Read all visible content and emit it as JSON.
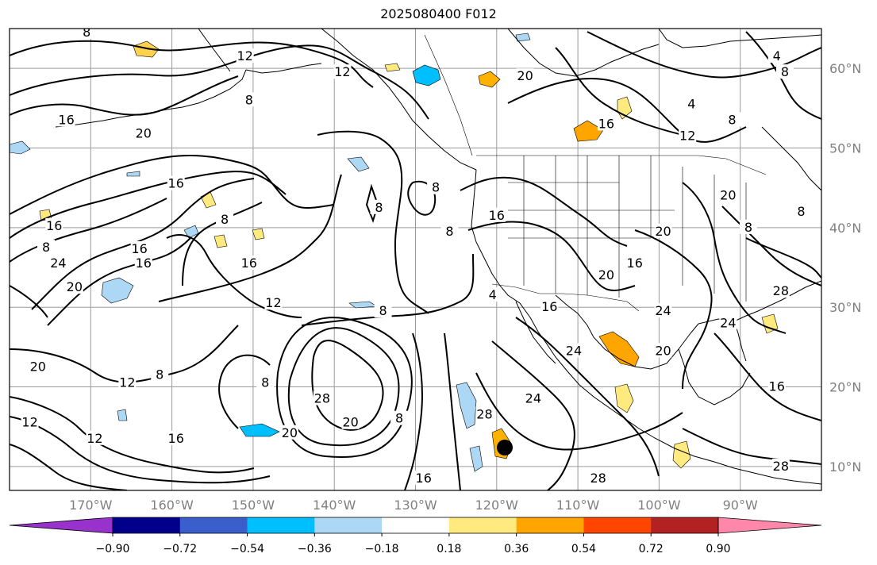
{
  "title": "2025080400 F012",
  "chart_data": {
    "type": "map",
    "projection": "equirectangular",
    "lon_range": [
      -180,
      -80
    ],
    "lat_range": [
      7,
      65
    ],
    "lon_ticks": [
      {
        "lon": -170,
        "label": "170°W"
      },
      {
        "lon": -160,
        "label": "160°W"
      },
      {
        "lon": -150,
        "label": "150°W"
      },
      {
        "lon": -140,
        "label": "140°W"
      },
      {
        "lon": -130,
        "label": "130°W"
      },
      {
        "lon": -120,
        "label": "120°W"
      },
      {
        "lon": -110,
        "label": "110°W"
      },
      {
        "lon": -100,
        "label": "100°W"
      },
      {
        "lon": -90,
        "label": "90°W"
      }
    ],
    "lat_ticks": [
      {
        "lat": 60,
        "label": "60°N"
      },
      {
        "lat": 50,
        "label": "50°N"
      },
      {
        "lat": 40,
        "label": "40°N"
      },
      {
        "lat": 30,
        "label": "30°N"
      },
      {
        "lat": 20,
        "label": "20°N"
      },
      {
        "lat": 10,
        "label": "10°N"
      }
    ],
    "colorbar": {
      "colors": [
        "#9932cc",
        "#00008b",
        "#3a5fcd",
        "#00bfff",
        "#add8f5",
        "#ffffff",
        "#ffea80",
        "#ffa500",
        "#ff4500",
        "#b22222",
        "#ff88aa"
      ],
      "tick_labels": [
        "−0.90",
        "−0.72",
        "−0.54",
        "−0.36",
        "−0.18",
        "0.18",
        "0.36",
        "0.54",
        "0.72",
        "0.90"
      ]
    },
    "contour_labels": [
      {
        "text": "8",
        "lon": -170.5,
        "lat": 64.5
      },
      {
        "text": "12",
        "lon": -151,
        "lat": 61.5
      },
      {
        "text": "12",
        "lon": -139,
        "lat": 59.5
      },
      {
        "text": "8",
        "lon": -150.5,
        "lat": 56
      },
      {
        "text": "16",
        "lon": -173,
        "lat": 53.5
      },
      {
        "text": "20",
        "lon": -163.5,
        "lat": 51.8
      },
      {
        "text": "16",
        "lon": -159.5,
        "lat": 45.5
      },
      {
        "text": "16",
        "lon": -174.5,
        "lat": 40.2
      },
      {
        "text": "8",
        "lon": -153.5,
        "lat": 41
      },
      {
        "text": "8",
        "lon": -175.5,
        "lat": 37.5
      },
      {
        "text": "16",
        "lon": -164,
        "lat": 37.3
      },
      {
        "text": "24",
        "lon": -174,
        "lat": 35.5
      },
      {
        "text": "16",
        "lon": -163.5,
        "lat": 35.5
      },
      {
        "text": "16",
        "lon": -150.5,
        "lat": 35.5
      },
      {
        "text": "20",
        "lon": -172,
        "lat": 32.5
      },
      {
        "text": "12",
        "lon": -147.5,
        "lat": 30.5
      },
      {
        "text": "8",
        "lon": -134,
        "lat": 29.5
      },
      {
        "text": "20",
        "lon": -176.5,
        "lat": 22.5
      },
      {
        "text": "12",
        "lon": -165.5,
        "lat": 20.5
      },
      {
        "text": "8",
        "lon": -161.5,
        "lat": 21.5
      },
      {
        "text": "8",
        "lon": -148.5,
        "lat": 20.5
      },
      {
        "text": "28",
        "lon": -141.5,
        "lat": 18.5
      },
      {
        "text": "20",
        "lon": -138,
        "lat": 15.5
      },
      {
        "text": "20",
        "lon": -145.5,
        "lat": 14.2
      },
      {
        "text": "8",
        "lon": -132,
        "lat": 16
      },
      {
        "text": "12",
        "lon": -177.5,
        "lat": 15.5
      },
      {
        "text": "12",
        "lon": -169.5,
        "lat": 13.5
      },
      {
        "text": "16",
        "lon": -159.5,
        "lat": 13.5
      },
      {
        "text": "16",
        "lon": -129,
        "lat": 8.5
      },
      {
        "text": "8",
        "lon": -134.5,
        "lat": 42.5
      },
      {
        "text": "8",
        "lon": -127.5,
        "lat": 45
      },
      {
        "text": "8",
        "lon": -125.8,
        "lat": 39.5
      },
      {
        "text": "16",
        "lon": -120,
        "lat": 41.5
      },
      {
        "text": "4",
        "lon": -120.5,
        "lat": 31.5
      },
      {
        "text": "16",
        "lon": -113.5,
        "lat": 30
      },
      {
        "text": "20",
        "lon": -116.5,
        "lat": 59
      },
      {
        "text": "16",
        "lon": -106.5,
        "lat": 53
      },
      {
        "text": "4",
        "lon": -96,
        "lat": 55.5
      },
      {
        "text": "8",
        "lon": -91,
        "lat": 53.5
      },
      {
        "text": "12",
        "lon": -96.5,
        "lat": 51.5
      },
      {
        "text": "8",
        "lon": -84.5,
        "lat": 59.5
      },
      {
        "text": "4",
        "lon": -85.5,
        "lat": 61.5
      },
      {
        "text": "20",
        "lon": -91.5,
        "lat": 44
      },
      {
        "text": "20",
        "lon": -99.5,
        "lat": 39.5
      },
      {
        "text": "8",
        "lon": -89,
        "lat": 40
      },
      {
        "text": "8",
        "lon": -82.5,
        "lat": 42
      },
      {
        "text": "16",
        "lon": -103,
        "lat": 35.5
      },
      {
        "text": "20",
        "lon": -106.5,
        "lat": 34
      },
      {
        "text": "24",
        "lon": -99.5,
        "lat": 29.5
      },
      {
        "text": "24",
        "lon": -91.5,
        "lat": 28
      },
      {
        "text": "28",
        "lon": -85,
        "lat": 32
      },
      {
        "text": "20",
        "lon": -99.5,
        "lat": 24.5
      },
      {
        "text": "24",
        "lon": -110.5,
        "lat": 24.5
      },
      {
        "text": "24",
        "lon": -115.5,
        "lat": 18.5
      },
      {
        "text": "28",
        "lon": -121.5,
        "lat": 16.5
      },
      {
        "text": "16",
        "lon": -85.5,
        "lat": 20
      },
      {
        "text": "28",
        "lon": -107.5,
        "lat": 8.5
      },
      {
        "text": "28",
        "lon": -85,
        "lat": 10
      }
    ]
  }
}
